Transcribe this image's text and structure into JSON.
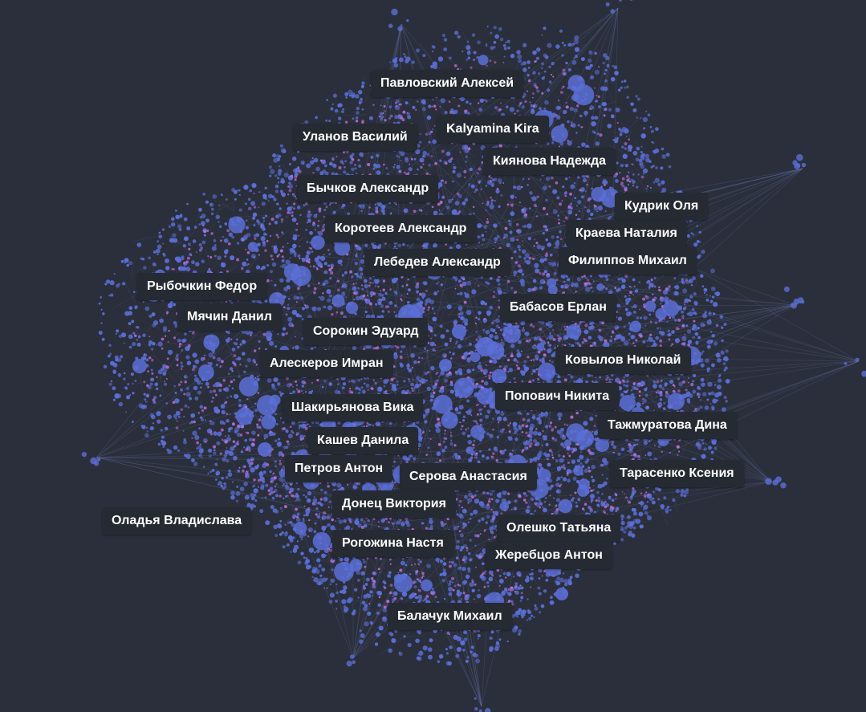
{
  "graph": {
    "colors": {
      "background": "#2b2f3b",
      "node": "#5b6fd6",
      "node_highlight": "#c46fd9",
      "edge": "#6a7bb8",
      "label_bg": "#262a33",
      "label_text": "#ffffff"
    },
    "labels": [
      "Павловский Алексей",
      "Kalyamina Kira",
      "Уланов Василий",
      "Киянова Надежда",
      "Бычков Александр",
      "Кудрик Оля",
      "Коротеев Александр",
      "Краева Наталия",
      "Лебедев Александр",
      "Филиппов Михаил",
      "Рыбочкин Федор",
      "Бабасов Ерлан",
      "Мячин Данил",
      "Сорокин Эдуард",
      "Алескеров Имран",
      "Ковылов Николай",
      "Попович Никита",
      "Шакирьянова Вика",
      "Тажмуратова Дина",
      "Кашев Данила",
      "Петров Антон",
      "Серова Анастасия",
      "Тарасенко Ксения",
      "Донец Виктория",
      "Оладья Владислава",
      "Олешко Татьяна",
      "Рогожина Настя",
      "Жеребцов Антон",
      "Балачук Михаил"
    ]
  }
}
